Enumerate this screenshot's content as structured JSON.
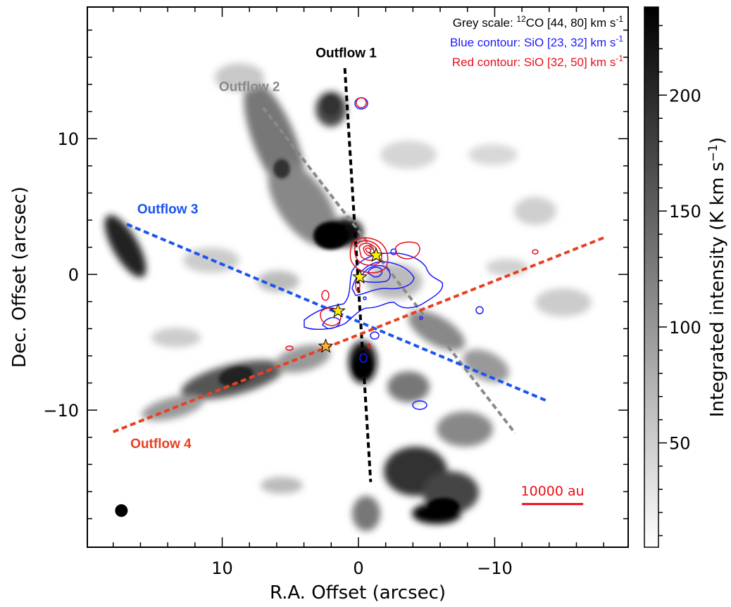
{
  "chart_data": {
    "type": "heatmap",
    "xlabel": "R.A. Offset (arcsec)",
    "ylabel": "Dec. Offset (arcsec)",
    "xlim": [
      19.9,
      -19.8
    ],
    "ylim": [
      -20.1,
      19.7
    ],
    "x_ticks": [
      10,
      0,
      -10
    ],
    "x_tick_labels": [
      "10",
      "0",
      "−10"
    ],
    "y_ticks": [
      10,
      0,
      -10
    ],
    "y_tick_labels": [
      "10",
      "0",
      "−10"
    ],
    "colorbar": {
      "label": "Integrated intensity (K km s",
      "label_sup": "−1",
      "label_end": ")",
      "range": [
        5,
        238
      ],
      "ticks": [
        50,
        100,
        150,
        200
      ],
      "tick_labels": [
        "50",
        "100",
        "150",
        "200"
      ],
      "colormap": "greyscale (white to black)"
    },
    "legend": [
      {
        "text_pre": "Grey scale: ",
        "sup": "12",
        "text_mid": "CO [44, 80] km s",
        "sup2": "-1",
        "color": "#000000"
      },
      {
        "text_pre": "Blue contour: SiO [23, 32] km s",
        "sup": "-1",
        "text_mid": "",
        "sup2": "",
        "color": "#1a1aff"
      },
      {
        "text_pre": "Red contour: SiO [32, 50] km s",
        "sup": "-1",
        "text_mid": "",
        "sup2": "",
        "color": "#e8101c"
      }
    ],
    "outflows": [
      {
        "name": "Outflow 1",
        "color": "#000000",
        "x": [
          1.0,
          -0.9
        ],
        "y": [
          15.2,
          -15.3
        ],
        "label_at": [
          0.9,
          16.0
        ]
      },
      {
        "name": "Outflow 2",
        "color": "#8a8a8a",
        "x": [
          7.0,
          -11.5
        ],
        "y": [
          12.3,
          -11.7
        ],
        "label_at": [
          8.0,
          13.5
        ]
      },
      {
        "name": "Outflow 3",
        "color": "#1a55f0",
        "x": [
          17.0,
          -13.8
        ],
        "y": [
          3.7,
          -9.3
        ],
        "label_at": [
          14.0,
          4.5
        ]
      },
      {
        "name": "Outflow 4",
        "color": "#e84020",
        "x": [
          18.0,
          -18.0
        ],
        "y": [
          -11.6,
          2.7
        ],
        "label_at": [
          14.5,
          -12.8
        ]
      }
    ],
    "sources": [
      {
        "x": -1.3,
        "y": 1.4,
        "color": "#ffef00"
      },
      {
        "x": -0.1,
        "y": -0.2,
        "color": "#ffef00"
      },
      {
        "x": 1.5,
        "y": -2.7,
        "color": "#ffef00"
      },
      {
        "x": 2.4,
        "y": -5.3,
        "color": "#ffb030"
      }
    ],
    "scalebar": {
      "label": "10000 au",
      "x": [
        -12.0,
        -16.5
      ],
      "y": -16.3
    },
    "beam": {
      "x": 17.4,
      "y": -17.4
    }
  },
  "style": {
    "blue_contour": "#1a1aff",
    "red_contour": "#e8101c"
  }
}
